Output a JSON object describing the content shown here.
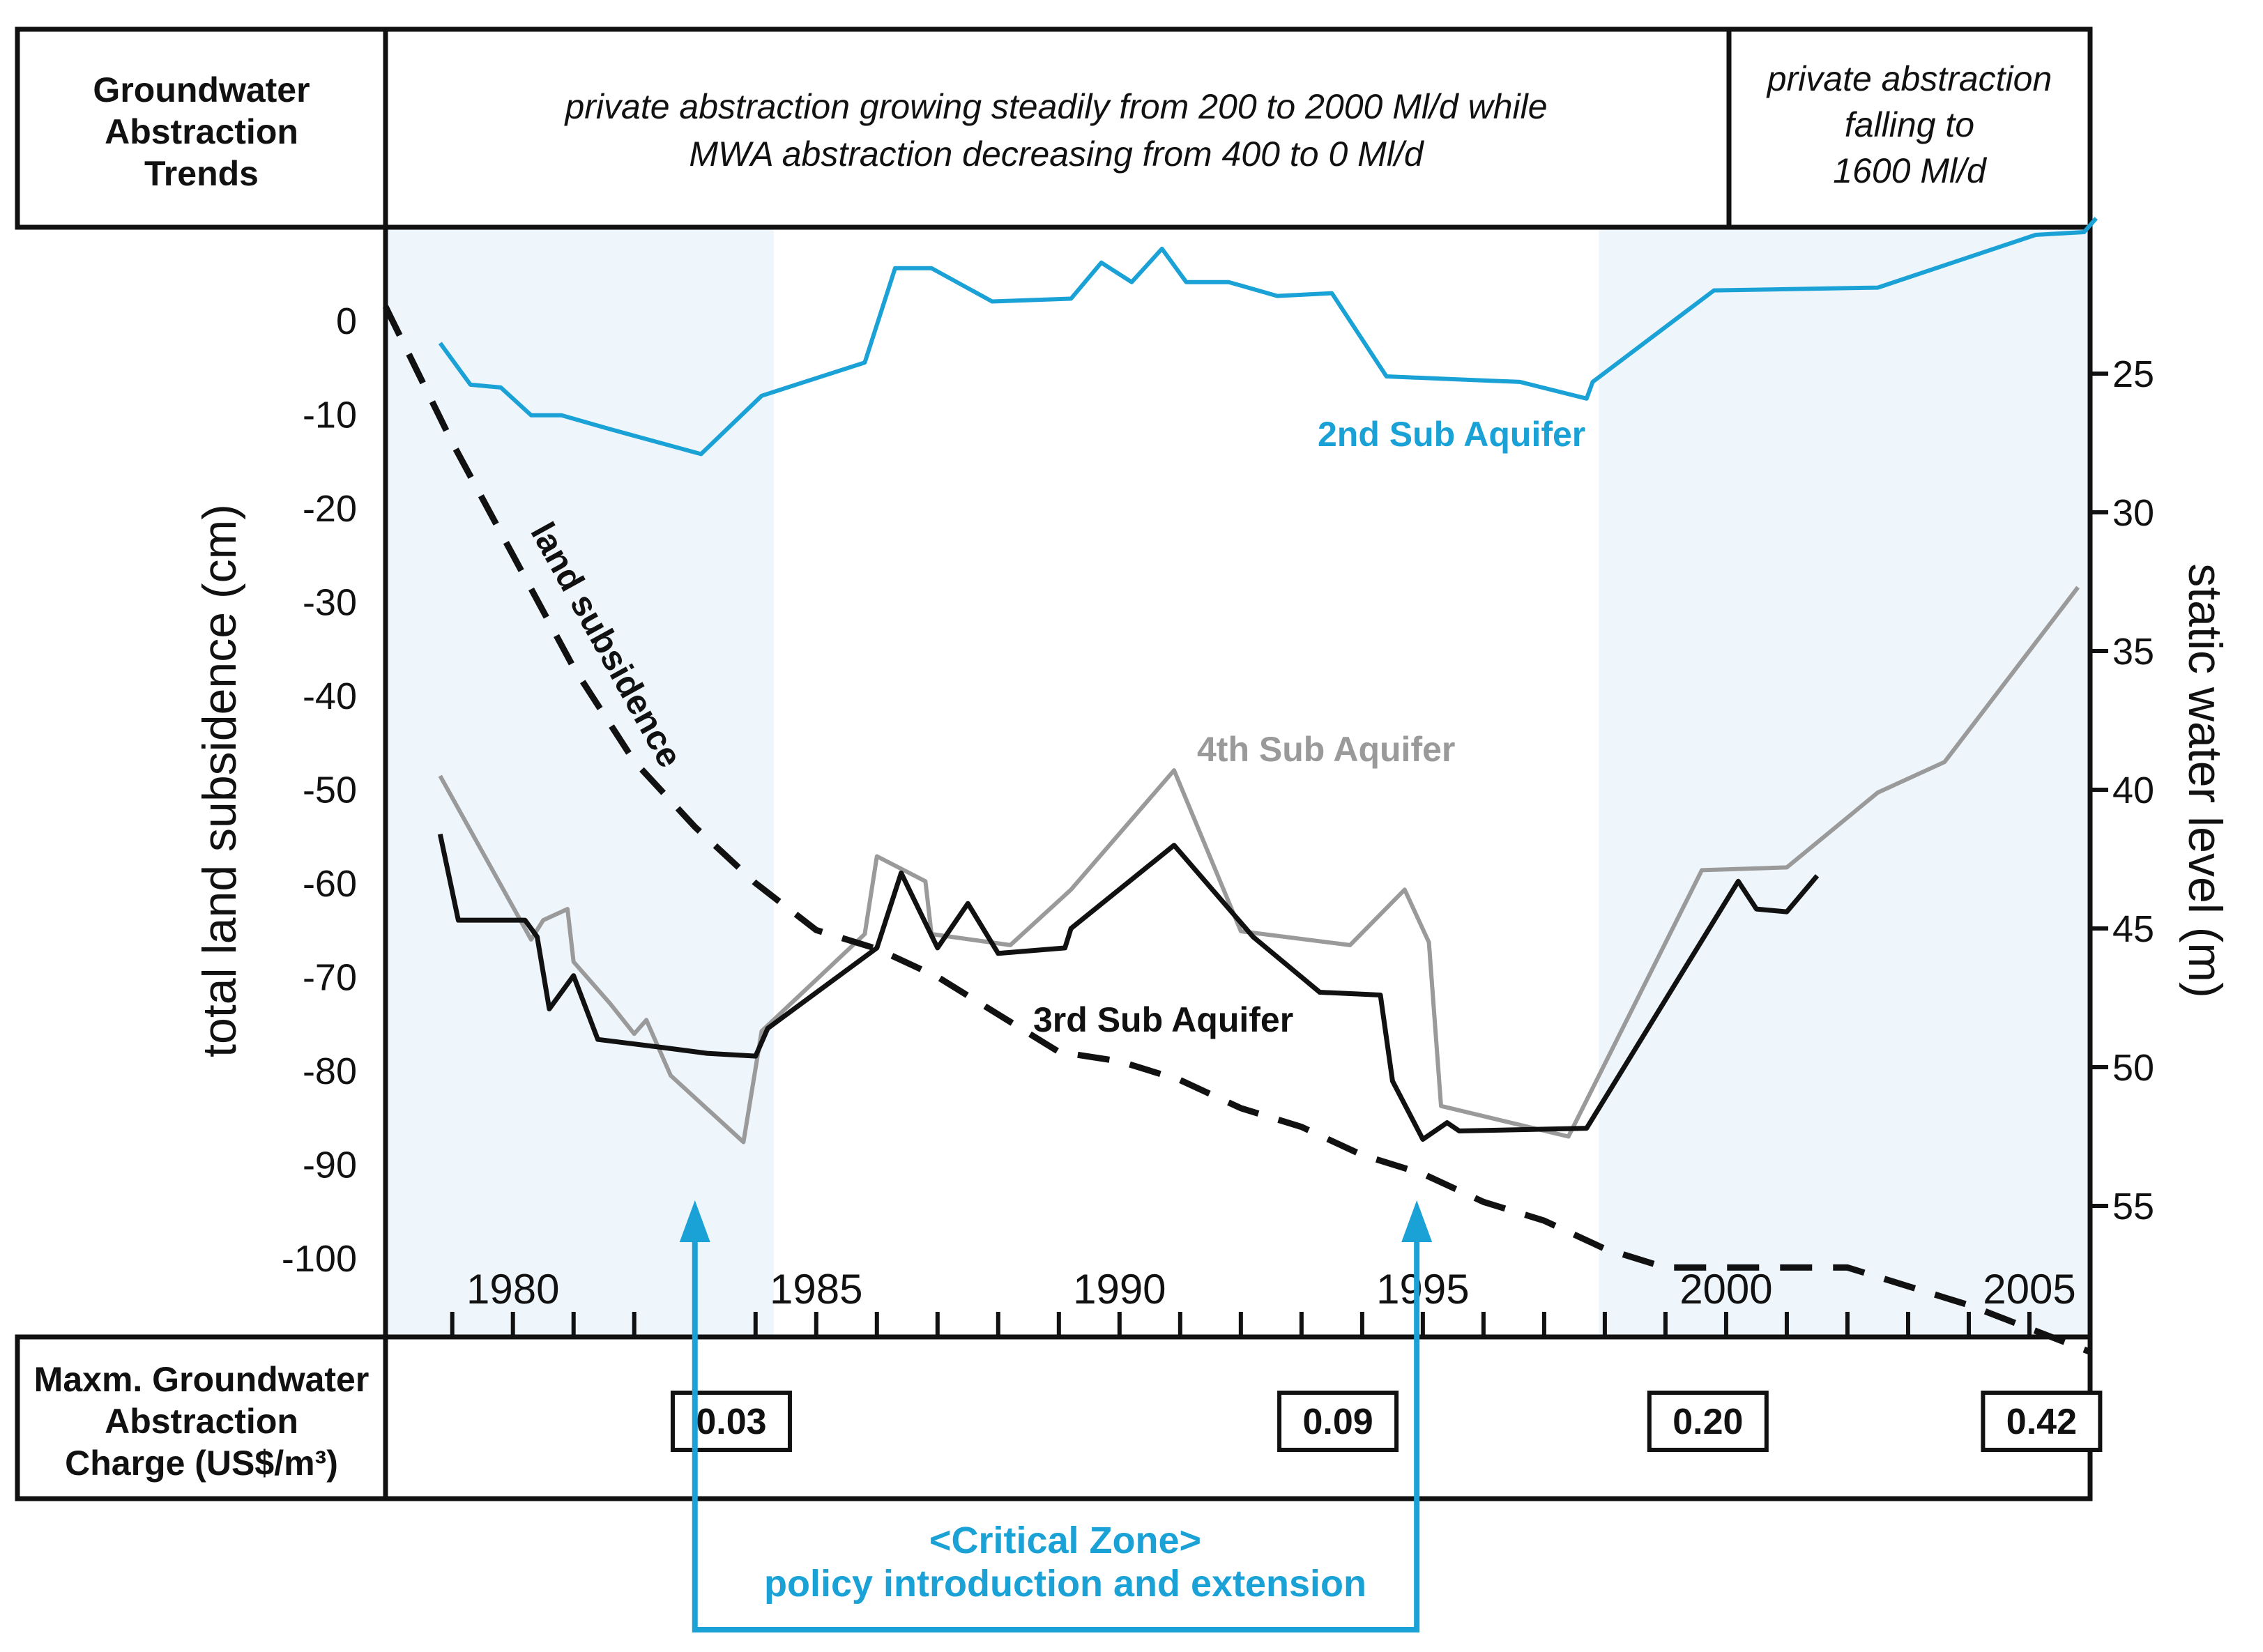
{
  "header": {
    "label": [
      "Groundwater",
      "Abstraction",
      "Trends"
    ],
    "trend_main": [
      "private abstraction growing steadily from 200 to 2000 Ml/d while",
      "MWA abstraction decreasing from 400 to 0 Ml/d"
    ],
    "trend_late": [
      "private abstraction",
      "falling to",
      "1600 Ml/d"
    ]
  },
  "charge_row": {
    "label": [
      "Maxm. Groundwater",
      "Abstraction",
      "Charge (US$/m³)"
    ],
    "charges": [
      {
        "year": 1983.6,
        "value": "0.03"
      },
      {
        "year": 1993.6,
        "value": "0.09"
      },
      {
        "year": 1999.7,
        "value": "0.20"
      },
      {
        "year": 2005.2,
        "value": "0.42"
      }
    ]
  },
  "critical_zone": {
    "line1": "<Critical Zone>",
    "line2": "policy introduction and extension",
    "start_year": 1983.0,
    "end_year": 1994.9
  },
  "colors": {
    "aquifer2": "#1aa1d6",
    "aquifer3": "#111111",
    "aquifer4": "#9a9a9a",
    "subsidence": "#111111",
    "shade": "#eef5fb",
    "critical": "#1aa1d6"
  },
  "chart_data": {
    "type": "line",
    "x_range": [
      1977.9,
      2006.0
    ],
    "x_ticks": [
      1980,
      1985,
      1990,
      1995,
      2000,
      2005
    ],
    "minor_x_ticks": [
      1979,
      1980,
      1981,
      1982,
      1983,
      1984,
      1985,
      1986,
      1987,
      1988,
      1989,
      1990,
      1991,
      1992,
      1993,
      1994,
      1995,
      1996,
      1997,
      1998,
      1999,
      2000,
      2001,
      2002,
      2003,
      2004,
      2005
    ],
    "shaded_periods": [
      [
        1977.9,
        1984.3
      ],
      [
        1997.9,
        2006.0
      ]
    ],
    "left_axis": {
      "label": "total land subsidence (cm)",
      "ticks": [
        0,
        -10,
        -20,
        -30,
        -40,
        -50,
        -60,
        -70,
        -80,
        -90,
        -100
      ]
    },
    "right_axis": {
      "label": "static water level (m)",
      "ticks": [
        25,
        30,
        35,
        40,
        45,
        50,
        55
      ]
    },
    "series": [
      {
        "name": "land subsidence",
        "axis": "left",
        "style": "dashed",
        "points": [
          [
            1977.9,
            1.5
          ],
          [
            1979.0,
            -13
          ],
          [
            1980.0,
            -25
          ],
          [
            1981.0,
            -37
          ],
          [
            1982.0,
            -47
          ],
          [
            1983.0,
            -54
          ],
          [
            1984.0,
            -60
          ],
          [
            1985.0,
            -65
          ],
          [
            1986.0,
            -67
          ],
          [
            1987.0,
            -70
          ],
          [
            1988.0,
            -74
          ],
          [
            1989.0,
            -78
          ],
          [
            1990.0,
            -79
          ],
          [
            1991.0,
            -81
          ],
          [
            1992.0,
            -84
          ],
          [
            1993.0,
            -86
          ],
          [
            1994.0,
            -89
          ],
          [
            1995.0,
            -91
          ],
          [
            1996.0,
            -94
          ],
          [
            1997.0,
            -96
          ],
          [
            1998.0,
            -99
          ],
          [
            1999.0,
            -101
          ],
          [
            2000.0,
            -101
          ],
          [
            2001.0,
            -101
          ],
          [
            2002.0,
            -101
          ],
          [
            2003.0,
            -103
          ],
          [
            2004.0,
            -105
          ],
          [
            2005.0,
            -107.5
          ],
          [
            2006.0,
            -110
          ]
        ]
      },
      {
        "name": "2nd Sub Aquifer",
        "axis": "right",
        "label": "2nd Sub Aquifer",
        "points": [
          [
            1978.8,
            23.9
          ],
          [
            1979.3,
            25.4
          ],
          [
            1979.8,
            25.5
          ],
          [
            1980.3,
            26.5
          ],
          [
            1980.8,
            26.5
          ],
          [
            1981.6,
            27.0
          ],
          [
            1983.1,
            27.9
          ],
          [
            1984.1,
            25.8
          ],
          [
            1985.8,
            24.6
          ],
          [
            1986.3,
            21.2
          ],
          [
            1986.9,
            21.2
          ],
          [
            1987.9,
            22.4
          ],
          [
            1989.2,
            22.3
          ],
          [
            1989.7,
            21.0
          ],
          [
            1990.2,
            21.7
          ],
          [
            1990.7,
            20.5
          ],
          [
            1991.1,
            21.7
          ],
          [
            1991.8,
            21.7
          ],
          [
            1992.6,
            22.2
          ],
          [
            1993.5,
            22.1
          ],
          [
            1994.4,
            25.1
          ],
          [
            1995.5,
            25.2
          ],
          [
            1996.6,
            25.3
          ],
          [
            1997.7,
            25.9
          ],
          [
            1997.8,
            25.3
          ],
          [
            1999.8,
            22.0
          ],
          [
            2002.5,
            21.9
          ],
          [
            2005.1,
            20.0
          ],
          [
            2005.9,
            19.9
          ],
          [
            2006.1,
            19.4
          ]
        ]
      },
      {
        "name": "3rd Sub Aquifer",
        "axis": "right",
        "label": "3rd Sub Aquifer",
        "points": [
          [
            1978.8,
            41.6
          ],
          [
            1979.1,
            44.7
          ],
          [
            1980.2,
            44.7
          ],
          [
            1980.4,
            45.3
          ],
          [
            1980.6,
            47.9
          ],
          [
            1981.0,
            46.7
          ],
          [
            1981.4,
            49.0
          ],
          [
            1982.5,
            49.3
          ],
          [
            1983.2,
            49.5
          ],
          [
            1984.0,
            49.6
          ],
          [
            1984.2,
            48.6
          ],
          [
            1986.0,
            45.7
          ],
          [
            1986.4,
            43.0
          ],
          [
            1987.0,
            45.7
          ],
          [
            1987.5,
            44.1
          ],
          [
            1988.0,
            45.9
          ],
          [
            1989.1,
            45.7
          ],
          [
            1989.2,
            45.0
          ],
          [
            1990.9,
            42.0
          ],
          [
            1992.2,
            45.3
          ],
          [
            1993.3,
            47.3
          ],
          [
            1994.3,
            47.4
          ],
          [
            1994.5,
            50.5
          ],
          [
            1995.0,
            52.6
          ],
          [
            1995.4,
            52.0
          ],
          [
            1995.6,
            52.3
          ],
          [
            1997.7,
            52.2
          ],
          [
            2000.2,
            43.3
          ],
          [
            2000.5,
            44.3
          ],
          [
            2001.0,
            44.4
          ],
          [
            2001.5,
            43.1
          ]
        ]
      },
      {
        "name": "4th Sub Aquifer",
        "axis": "right",
        "label": "4th Sub Aquifer",
        "points": [
          [
            1978.8,
            39.5
          ],
          [
            1980.3,
            45.4
          ],
          [
            1980.5,
            44.7
          ],
          [
            1980.9,
            44.3
          ],
          [
            1981.0,
            46.2
          ],
          [
            1981.6,
            47.7
          ],
          [
            1982.0,
            48.8
          ],
          [
            1982.2,
            48.3
          ],
          [
            1982.6,
            50.3
          ],
          [
            1983.8,
            52.7
          ],
          [
            1984.1,
            48.7
          ],
          [
            1985.8,
            45.2
          ],
          [
            1986.0,
            42.4
          ],
          [
            1986.8,
            43.3
          ],
          [
            1986.9,
            45.2
          ],
          [
            1988.2,
            45.6
          ],
          [
            1989.2,
            43.6
          ],
          [
            1990.9,
            39.3
          ],
          [
            1992.0,
            45.1
          ],
          [
            1993.8,
            45.6
          ],
          [
            1994.7,
            43.6
          ],
          [
            1995.1,
            45.5
          ],
          [
            1995.3,
            51.4
          ],
          [
            1997.4,
            52.5
          ],
          [
            1999.6,
            42.9
          ],
          [
            2001.0,
            42.8
          ],
          [
            2002.5,
            40.1
          ],
          [
            2003.6,
            39.0
          ],
          [
            2005.8,
            32.7
          ]
        ]
      }
    ]
  }
}
